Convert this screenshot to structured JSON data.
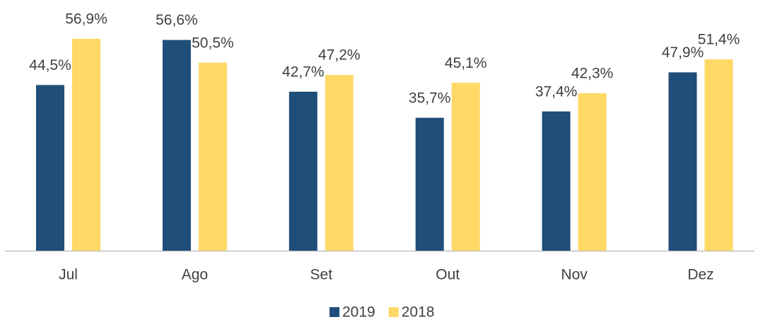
{
  "chart_data": {
    "type": "bar",
    "categories": [
      "Jul",
      "Ago",
      "Set",
      "Out",
      "Nov",
      "Dez"
    ],
    "series": [
      {
        "name": "2019",
        "color": "#1f4e79",
        "values": [
          44.5,
          56.6,
          42.7,
          35.7,
          37.4,
          47.9
        ],
        "value_labels": [
          "44,5%",
          "56,6%",
          "42,7%",
          "35,7%",
          "37,4%",
          "47,9%"
        ]
      },
      {
        "name": "2018",
        "color": "#ffd966",
        "values": [
          56.9,
          50.5,
          47.2,
          45.1,
          42.3,
          51.4
        ],
        "value_labels": [
          "56,9%",
          "50,5%",
          "47,2%",
          "45,1%",
          "42,3%",
          "51,4%"
        ]
      }
    ],
    "legend": "bottom"
  }
}
